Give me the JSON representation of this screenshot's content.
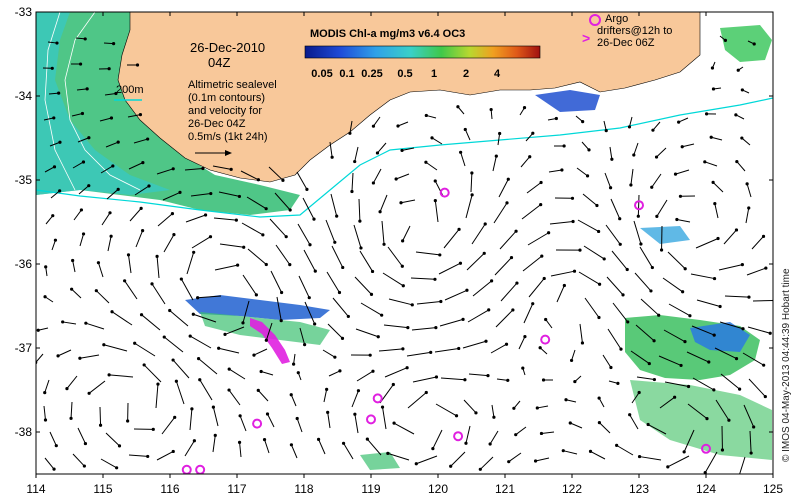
{
  "map": {
    "title": "MODIS Chl-a mg/m3 v6.4 OC3",
    "date_line1": "26-Dec-2010",
    "date_line2": "04Z",
    "depth_label": "200m",
    "description": [
      "Altimetric sealevel",
      "(0.1m contours)",
      "and velocity for",
      "26-Dec 04Z",
      "0.5m/s (1kt 24h)"
    ],
    "argo_legend": [
      "Argo",
      "drifters@12h to",
      "26-Dec 06Z"
    ],
    "credit": "© IMOS 04-May-2013 04:44:39 Hobart time",
    "x_ticks": [
      "114",
      "115",
      "116",
      "117",
      "118",
      "119",
      "120",
      "121",
      "122",
      "123",
      "124",
      "125"
    ],
    "y_ticks": [
      "-33",
      "-34",
      "-35",
      "-36",
      "-37",
      "-38"
    ],
    "xlim": [
      114,
      125
    ],
    "ylim": [
      -38.5,
      -33
    ],
    "colorbar": {
      "labels": [
        "0.05",
        "0.1",
        "0.25",
        "0.5",
        "1",
        "2",
        "4"
      ],
      "colors": [
        "#081a8c",
        "#1f4bd8",
        "#2fa0e8",
        "#3ad0c8",
        "#3fc84a",
        "#b8d830",
        "#f0a020",
        "#e05a18",
        "#a01010"
      ]
    },
    "colors": {
      "land": "#f8c89a",
      "cloud": "#ffffff",
      "contour": "#00d8d8",
      "argo": "#e020e0",
      "arrow": "#000000"
    },
    "argo_floats": [
      {
        "lon": 120.1,
        "lat": -35.15
      },
      {
        "lon": 123.0,
        "lat": -35.3
      },
      {
        "lon": 121.6,
        "lat": -36.9
      },
      {
        "lon": 119.1,
        "lat": -37.6
      },
      {
        "lon": 119.0,
        "lat": -37.85
      },
      {
        "lon": 117.3,
        "lat": -37.9
      },
      {
        "lon": 120.3,
        "lat": -38.05
      },
      {
        "lon": 124.0,
        "lat": -38.2
      },
      {
        "lon": 116.25,
        "lat": -38.45
      },
      {
        "lon": 116.45,
        "lat": -38.45
      }
    ]
  }
}
